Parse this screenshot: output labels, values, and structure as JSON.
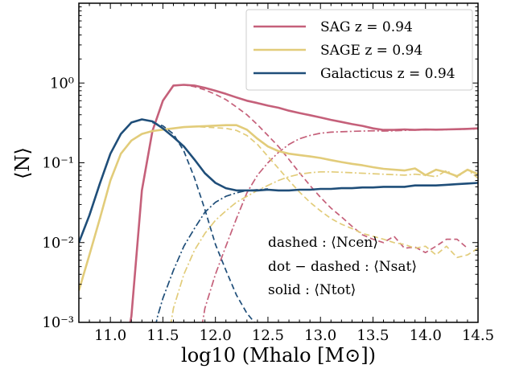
{
  "chart_data": {
    "type": "line",
    "title": "",
    "xlabel": "log10 (Mhalo [M⊙])",
    "ylabel": "⟨N⟩",
    "xlim": [
      10.7,
      14.5
    ],
    "ylim": [
      0.001,
      10
    ],
    "yscale": "log",
    "grid": false,
    "legend_position": "top-right",
    "x_ticks": [
      "11.0",
      "11.5",
      "12.0",
      "12.5",
      "13.0",
      "13.5",
      "14.0",
      "14.5"
    ],
    "x_tick_values": [
      11.0,
      11.5,
      12.0,
      12.5,
      13.0,
      13.5,
      14.0,
      14.5
    ],
    "y_ticks": [
      "10⁻³",
      "10⁻²",
      "10⁻¹",
      "10⁰"
    ],
    "y_tick_values": [
      0.001,
      0.01,
      0.1,
      1
    ],
    "legend": [
      {
        "label": "SAG z = 0.94",
        "color": "#c5607a"
      },
      {
        "label": "SAGE z = 0.94",
        "color": "#e2cc7a"
      },
      {
        "label": "Galacticus z = 0.94",
        "color": "#1f4e79"
      }
    ],
    "annotations": [
      "dashed : ⟨Ncen⟩",
      "dot − dashed : ⟨Nsat⟩",
      "solid : ⟨Ntot⟩"
    ],
    "series": [
      {
        "name": "SAG z = 0.94",
        "component": "total",
        "style": "solid",
        "color": "#c5607a",
        "x": [
          11.15,
          11.2,
          11.3,
          11.4,
          11.5,
          11.6,
          11.7,
          11.8,
          11.9,
          12.0,
          12.1,
          12.2,
          12.3,
          12.4,
          12.5,
          12.6,
          12.7,
          12.8,
          12.9,
          13.0,
          13.1,
          13.2,
          13.3,
          13.4,
          13.5,
          13.6,
          13.7,
          13.8,
          13.9,
          14.0,
          14.1,
          14.2,
          14.3,
          14.4,
          14.5
        ],
        "y": [
          0.0005,
          0.0012,
          0.045,
          0.25,
          0.6,
          0.93,
          0.95,
          0.93,
          0.87,
          0.8,
          0.73,
          0.66,
          0.6,
          0.56,
          0.52,
          0.49,
          0.45,
          0.42,
          0.395,
          0.37,
          0.345,
          0.325,
          0.305,
          0.29,
          0.27,
          0.258,
          0.258,
          0.262,
          0.258,
          0.262,
          0.26,
          0.262,
          0.264,
          0.266,
          0.27
        ]
      },
      {
        "name": "SAG z = 0.94",
        "component": "central",
        "style": "dashed",
        "color": "#c5607a",
        "x": [
          11.6,
          11.7,
          11.8,
          11.9,
          12.0,
          12.1,
          12.2,
          12.3,
          12.4,
          12.5,
          12.6,
          12.7,
          12.8,
          12.9,
          13.0,
          13.1,
          13.2,
          13.3,
          13.4,
          13.5,
          13.6,
          13.7,
          13.8,
          13.9,
          14.0,
          14.1,
          14.2,
          14.3,
          14.4
        ],
        "y": [
          0.93,
          0.95,
          0.9,
          0.82,
          0.72,
          0.62,
          0.5,
          0.4,
          0.3,
          0.22,
          0.16,
          0.11,
          0.075,
          0.052,
          0.037,
          0.027,
          0.021,
          0.016,
          0.0125,
          0.011,
          0.01,
          0.012,
          0.0085,
          0.0088,
          0.0075,
          0.009,
          0.011,
          0.011,
          0.0085
        ]
      },
      {
        "name": "SAG z = 0.94",
        "component": "satellite",
        "style": "dot-dashed",
        "color": "#c5607a",
        "x": [
          11.85,
          11.9,
          12.0,
          12.1,
          12.2,
          12.3,
          12.4,
          12.5,
          12.6,
          12.7,
          12.8,
          12.9,
          13.0,
          13.1,
          13.2,
          13.3,
          13.4,
          13.5,
          13.6,
          13.7,
          13.8,
          13.9,
          14.0,
          14.1,
          14.2,
          14.3,
          14.4,
          14.5
        ],
        "y": [
          0.0006,
          0.0015,
          0.004,
          0.009,
          0.02,
          0.042,
          0.07,
          0.1,
          0.135,
          0.17,
          0.2,
          0.22,
          0.235,
          0.242,
          0.245,
          0.248,
          0.25,
          0.252,
          0.25,
          0.252,
          0.255,
          0.257,
          0.258,
          0.259,
          0.26,
          0.262,
          0.264,
          0.266
        ]
      },
      {
        "name": "SAGE z = 0.94",
        "component": "total",
        "style": "solid",
        "color": "#e2cc7a",
        "x": [
          10.7,
          10.8,
          10.9,
          11.0,
          11.1,
          11.2,
          11.3,
          11.4,
          11.5,
          11.6,
          11.7,
          11.8,
          11.9,
          12.0,
          12.1,
          12.2,
          12.3,
          12.4,
          12.5,
          12.6,
          12.7,
          12.8,
          12.9,
          13.0,
          13.1,
          13.2,
          13.3,
          13.4,
          13.5,
          13.6,
          13.7,
          13.8,
          13.9,
          14.0,
          14.1,
          14.2,
          14.3,
          14.4,
          14.5
        ],
        "y": [
          0.0025,
          0.007,
          0.02,
          0.06,
          0.13,
          0.19,
          0.23,
          0.25,
          0.26,
          0.27,
          0.28,
          0.285,
          0.288,
          0.292,
          0.296,
          0.296,
          0.26,
          0.2,
          0.16,
          0.14,
          0.13,
          0.125,
          0.12,
          0.115,
          0.108,
          0.102,
          0.097,
          0.093,
          0.088,
          0.084,
          0.082,
          0.08,
          0.085,
          0.07,
          0.082,
          0.076,
          0.068,
          0.082,
          0.072
        ]
      },
      {
        "name": "SAGE z = 0.94",
        "component": "central",
        "style": "dashed",
        "color": "#e2cc7a",
        "x": [
          11.6,
          11.7,
          11.8,
          11.9,
          12.0,
          12.1,
          12.2,
          12.3,
          12.4,
          12.5,
          12.6,
          12.7,
          12.8,
          12.9,
          13.0,
          13.1,
          13.2,
          13.3,
          13.4,
          13.5,
          13.6,
          13.7,
          13.8,
          13.9,
          14.0,
          14.1,
          14.2,
          14.3,
          14.4,
          14.5
        ],
        "y": [
          0.27,
          0.28,
          0.285,
          0.28,
          0.275,
          0.27,
          0.255,
          0.22,
          0.17,
          0.12,
          0.085,
          0.06,
          0.043,
          0.032,
          0.025,
          0.02,
          0.017,
          0.015,
          0.013,
          0.012,
          0.011,
          0.01,
          0.0095,
          0.0085,
          0.009,
          0.007,
          0.009,
          0.0065,
          0.007,
          0.0085
        ]
      },
      {
        "name": "SAGE z = 0.94",
        "component": "satellite",
        "style": "dot-dashed",
        "color": "#e2cc7a",
        "x": [
          11.55,
          11.6,
          11.7,
          11.8,
          11.9,
          12.0,
          12.1,
          12.2,
          12.3,
          12.4,
          12.5,
          12.6,
          12.7,
          12.8,
          12.9,
          13.0,
          13.1,
          13.2,
          13.3,
          13.4,
          13.5,
          13.6,
          13.7,
          13.8,
          13.9,
          14.0,
          14.1,
          14.2,
          14.3,
          14.4,
          14.5
        ],
        "y": [
          0.0006,
          0.0015,
          0.004,
          0.008,
          0.013,
          0.019,
          0.025,
          0.032,
          0.038,
          0.045,
          0.052,
          0.06,
          0.067,
          0.072,
          0.075,
          0.077,
          0.077,
          0.076,
          0.075,
          0.074,
          0.073,
          0.072,
          0.071,
          0.07,
          0.072,
          0.07,
          0.067,
          0.08,
          0.066,
          0.082,
          0.064
        ]
      },
      {
        "name": "Galacticus z = 0.94",
        "component": "total",
        "style": "solid",
        "color": "#1f4e79",
        "x": [
          10.7,
          10.8,
          10.9,
          11.0,
          11.1,
          11.2,
          11.3,
          11.4,
          11.5,
          11.6,
          11.7,
          11.8,
          11.9,
          12.0,
          12.1,
          12.2,
          12.3,
          12.4,
          12.5,
          12.6,
          12.7,
          12.8,
          12.9,
          13.0,
          13.1,
          13.2,
          13.3,
          13.4,
          13.5,
          13.6,
          13.7,
          13.8,
          13.9,
          14.0,
          14.1,
          14.2,
          14.3,
          14.4,
          14.5
        ],
        "y": [
          0.01,
          0.022,
          0.055,
          0.13,
          0.23,
          0.32,
          0.35,
          0.33,
          0.27,
          0.21,
          0.16,
          0.11,
          0.074,
          0.056,
          0.048,
          0.045,
          0.045,
          0.045,
          0.046,
          0.045,
          0.045,
          0.046,
          0.046,
          0.047,
          0.047,
          0.048,
          0.048,
          0.049,
          0.049,
          0.05,
          0.05,
          0.05,
          0.052,
          0.052,
          0.052,
          0.053,
          0.054,
          0.055,
          0.056
        ]
      },
      {
        "name": "Galacticus z = 0.94",
        "component": "central",
        "style": "dashed",
        "color": "#1f4e79",
        "x": [
          11.4,
          11.5,
          11.6,
          11.7,
          11.8,
          11.9,
          12.0,
          12.1,
          12.2,
          12.3,
          12.4,
          12.45
        ],
        "y": [
          0.32,
          0.29,
          0.23,
          0.14,
          0.065,
          0.026,
          0.0095,
          0.0045,
          0.0022,
          0.0013,
          0.0009,
          0.0007
        ]
      },
      {
        "name": "Galacticus z = 0.94",
        "component": "satellite",
        "style": "dot-dashed",
        "color": "#1f4e79",
        "x": [
          11.4,
          11.45,
          11.5,
          11.6,
          11.7,
          11.8,
          11.9,
          12.0,
          12.1,
          12.2,
          12.3,
          12.4,
          12.5
        ],
        "y": [
          0.0006,
          0.0012,
          0.002,
          0.0045,
          0.009,
          0.015,
          0.024,
          0.032,
          0.038,
          0.042,
          0.045,
          0.046,
          0.047
        ]
      }
    ]
  }
}
